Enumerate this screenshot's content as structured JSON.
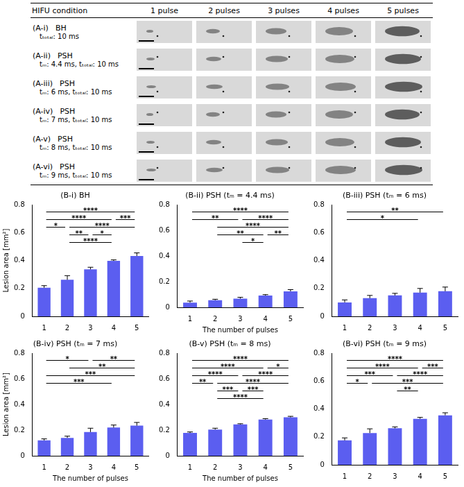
{
  "table": {
    "header": [
      "HIFU condition",
      "1 pulse",
      "2 pulses",
      "3 pulses",
      "4 pulses",
      "5 pulses"
    ],
    "rows": [
      {
        "label": "(A-i)",
        "condition": "BH",
        "parameters": "tₜₒₜₐₗ: 10 ms"
      },
      {
        "label": "(A-ii)",
        "condition": "PSH",
        "parameters": "tₘ: 4.4 ms, tₜₒₜₐₗ: 10 ms"
      },
      {
        "label": "(A-iii)",
        "condition": "PSH",
        "parameters": "tₘ: 6 ms, tₜₒₜₐₗ: 10 ms"
      },
      {
        "label": "(A-iv)",
        "condition": "PSH",
        "parameters": "tₘ: 7 ms, tₜₒₜₐₗ: 10 ms"
      },
      {
        "label": "(A-v)",
        "condition": "PSH",
        "parameters": "tₘ: 8 ms, tₜₒₜₐₗ: 10 ms"
      },
      {
        "label": "(A-vi)",
        "condition": "PSH",
        "parameters": "tₘ: 9 ms, tₜₒₜₐₗ: 10 ms"
      }
    ]
  },
  "chart_data": [
    {
      "type": "bar",
      "title": "(B-i) BH",
      "y_label": "Lesion area [mm²]",
      "categories": [
        "1",
        "2",
        "3",
        "4",
        "5"
      ],
      "values": [
        0.205,
        0.262,
        0.337,
        0.398,
        0.433
      ],
      "errors": [
        0.015,
        0.03,
        0.015,
        0.007,
        0.022
      ],
      "color": "#5b5ef0",
      "ylim": [
        0,
        0.8
      ],
      "yticks": [
        0,
        0.2,
        0.4,
        0.6,
        0.8
      ],
      "grid": false,
      "significance": [
        {
          "from": "1",
          "to": "5",
          "label": "****"
        },
        {
          "from": "1",
          "to": "4",
          "label": "****"
        },
        {
          "from": "4",
          "to": "5",
          "label": "***"
        },
        {
          "from": "1",
          "to": "2",
          "label": "*"
        },
        {
          "from": "2",
          "to": "5",
          "label": "****"
        },
        {
          "from": "2",
          "to": "3",
          "label": "**"
        },
        {
          "from": "3",
          "to": "4",
          "label": "*"
        },
        {
          "from": "2",
          "to": "4",
          "label": "****"
        }
      ]
    },
    {
      "type": "bar",
      "title": "(B-ii) PSH (tₘ = 4.4 ms)",
      "x_label": "The number of pulses",
      "categories": [
        "1",
        "2",
        "3",
        "4",
        "5"
      ],
      "values": [
        0.037,
        0.055,
        0.068,
        0.092,
        0.125
      ],
      "errors": [
        0.012,
        0.008,
        0.01,
        0.007,
        0.013
      ],
      "color": "#5b5ef0",
      "ylim": [
        0,
        0.8
      ],
      "yticks": [
        0,
        0.2,
        0.4,
        0.6,
        0.8
      ],
      "grid": false,
      "significance": [
        {
          "from": "1",
          "to": "5",
          "label": "****"
        },
        {
          "from": "1",
          "to": "3",
          "label": "**"
        },
        {
          "from": "3",
          "to": "5",
          "label": "****"
        },
        {
          "from": "2",
          "to": "5",
          "label": "****"
        },
        {
          "from": "2",
          "to": "4",
          "label": "**"
        },
        {
          "from": "3",
          "to": "4",
          "label": "*"
        },
        {
          "from": "4",
          "to": "5",
          "label": "**"
        }
      ]
    },
    {
      "type": "bar",
      "title": "(B-iii) PSH (tₘ = 6 ms)",
      "categories": [
        "1",
        "2",
        "3",
        "4",
        "5"
      ],
      "values": [
        0.1,
        0.13,
        0.15,
        0.17,
        0.18
      ],
      "errors": [
        0.018,
        0.02,
        0.015,
        0.03,
        0.03
      ],
      "color": "#5b5ef0",
      "ylim": [
        0,
        0.8
      ],
      "yticks": [
        0,
        0.2,
        0.4,
        0.6,
        0.8
      ],
      "grid": false,
      "significance": [
        {
          "from": "1",
          "to": "5",
          "label": "**"
        },
        {
          "from": "1",
          "to": "4",
          "label": "*"
        }
      ]
    },
    {
      "type": "bar",
      "title": "(B-iv) PSH (tₘ = 7 ms)",
      "x_label": "The number of pulses",
      "y_label": "Lesion area [mm²]",
      "categories": [
        "1",
        "2",
        "3",
        "4",
        "5"
      ],
      "values": [
        0.12,
        0.14,
        0.185,
        0.22,
        0.235
      ],
      "errors": [
        0.012,
        0.013,
        0.03,
        0.02,
        0.025
      ],
      "color": "#5b5ef0",
      "ylim": [
        0,
        0.8
      ],
      "yticks": [
        0,
        0.2,
        0.4,
        0.6,
        0.8
      ],
      "grid": false,
      "significance": [
        {
          "from": "3",
          "to": "5",
          "label": "**"
        },
        {
          "from": "2",
          "to": "5",
          "label": "**"
        },
        {
          "from": "1",
          "to": "5",
          "label": "***"
        },
        {
          "from": "1",
          "to": "4",
          "label": "***"
        },
        {
          "from": "1",
          "to": "3",
          "label": "*"
        }
      ]
    },
    {
      "type": "bar",
      "title": "(B-v) PSH (tₘ = 8 ms)",
      "x_label": "The number of pulses",
      "categories": [
        "1",
        "2",
        "3",
        "4",
        "5"
      ],
      "values": [
        0.178,
        0.205,
        0.245,
        0.283,
        0.3
      ],
      "errors": [
        0.008,
        0.01,
        0.005,
        0.007,
        0.008
      ],
      "color": "#5b5ef0",
      "ylim": [
        0,
        0.8
      ],
      "yticks": [
        0,
        0.2,
        0.4,
        0.6,
        0.8
      ],
      "grid": false,
      "significance": [
        {
          "from": "1",
          "to": "5",
          "label": "****"
        },
        {
          "from": "1",
          "to": "4",
          "label": "****"
        },
        {
          "from": "1",
          "to": "3",
          "label": "****"
        },
        {
          "from": "3",
          "to": "5",
          "label": "****"
        },
        {
          "from": "1",
          "to": "2",
          "label": "**"
        },
        {
          "from": "2",
          "to": "5",
          "label": "****"
        },
        {
          "from": "2",
          "to": "3",
          "label": "***"
        },
        {
          "from": "3",
          "to": "4",
          "label": "***"
        },
        {
          "from": "4",
          "to": "5",
          "label": "*"
        },
        {
          "from": "2",
          "to": "4",
          "label": "****"
        }
      ]
    },
    {
      "type": "bar",
      "title": "(B-vi) PSH (tₘ = 9 ms)",
      "categories": [
        "1",
        "2",
        "3",
        "4",
        "5"
      ],
      "values": [
        0.175,
        0.228,
        0.262,
        0.33,
        0.355
      ],
      "errors": [
        0.018,
        0.03,
        0.01,
        0.01,
        0.018
      ],
      "color": "#5b5ef0",
      "ylim": [
        0,
        0.8
      ],
      "yticks": [
        0,
        0.2,
        0.4,
        0.6,
        0.8
      ],
      "grid": false,
      "significance": [
        {
          "from": "1",
          "to": "5",
          "label": "****"
        },
        {
          "from": "1",
          "to": "4",
          "label": "****"
        },
        {
          "from": "4",
          "to": "5",
          "label": "***"
        },
        {
          "from": "1",
          "to": "3",
          "label": "***"
        },
        {
          "from": "3",
          "to": "5",
          "label": "****"
        },
        {
          "from": "1",
          "to": "2",
          "label": "*"
        },
        {
          "from": "2",
          "to": "5",
          "label": "***"
        },
        {
          "from": "3",
          "to": "4",
          "label": "**"
        }
      ]
    }
  ]
}
